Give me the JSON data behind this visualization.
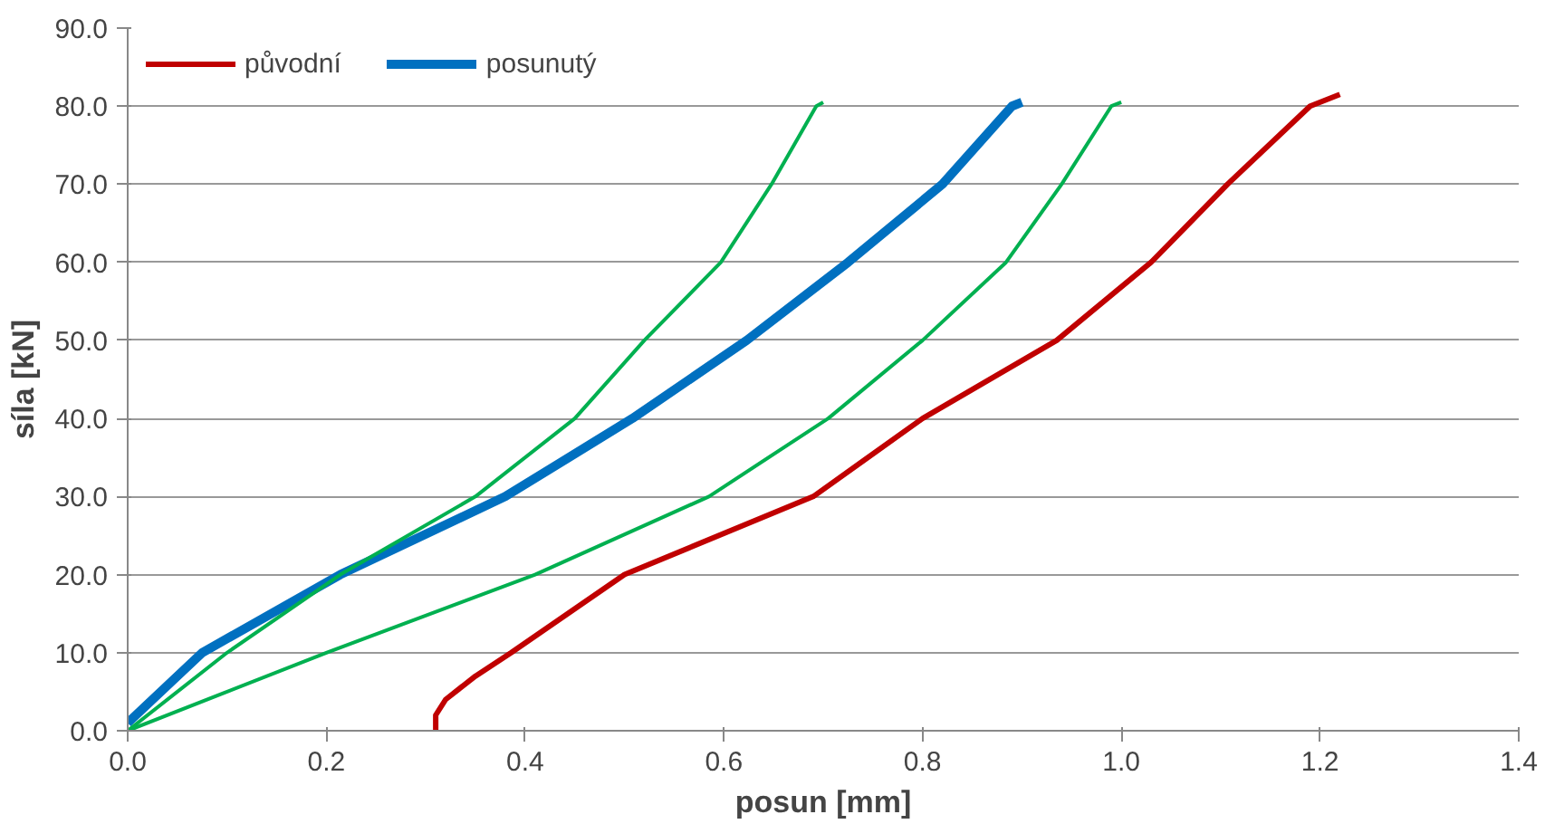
{
  "chart_data": {
    "type": "line",
    "xlabel": "posun [mm]",
    "ylabel": "síla [kN]",
    "xlim": [
      0,
      1.4
    ],
    "ylim": [
      0,
      90
    ],
    "xticks": [
      {
        "value": 0,
        "label": "0.0"
      },
      {
        "value": 0.2,
        "label": "0.2"
      },
      {
        "value": 0.4,
        "label": "0.4"
      },
      {
        "value": 0.6,
        "label": "0.6"
      },
      {
        "value": 0.8,
        "label": "0.8"
      },
      {
        "value": 1.0,
        "label": "1.0"
      },
      {
        "value": 1.2,
        "label": "1.2"
      },
      {
        "value": 1.4,
        "label": "1.4"
      }
    ],
    "yticks": [
      {
        "value": 0,
        "label": "0.0"
      },
      {
        "value": 10,
        "label": "10.0"
      },
      {
        "value": 20,
        "label": "20.0"
      },
      {
        "value": 30,
        "label": "30.0"
      },
      {
        "value": 40,
        "label": "40.0"
      },
      {
        "value": 50,
        "label": "50.0"
      },
      {
        "value": 60,
        "label": "60.0"
      },
      {
        "value": 70,
        "label": "70.0"
      },
      {
        "value": 80,
        "label": "80.0"
      },
      {
        "value": 90,
        "label": "90.0"
      }
    ],
    "grid": "y",
    "legend": "top left",
    "marker": "none",
    "line_style": "solid",
    "series": [
      {
        "name": "původní",
        "color": "#c00000",
        "x": [
          0.31,
          0.31,
          0.32,
          0.35,
          0.386,
          0.5,
          0.69,
          0.8,
          0.935,
          1.03,
          1.107,
          1.19,
          1.22
        ],
        "values": [
          0,
          2,
          4,
          7,
          10,
          20,
          30,
          40,
          50,
          60,
          70,
          80,
          81.5
        ]
      },
      {
        "name": "posunutý",
        "color": "#0070c0",
        "x": [
          0,
          0.075,
          0.214,
          0.38,
          0.508,
          0.623,
          0.725,
          0.82,
          0.89,
          0.9
        ],
        "values": [
          1,
          10,
          20,
          30,
          40,
          50,
          60,
          70,
          80,
          80.5
        ]
      },
      {
        "color": "#00b050",
        "x": [
          0,
          0.1,
          0.214,
          0.35,
          0.45,
          0.52,
          0.597,
          0.648,
          0.693,
          0.7
        ],
        "values": [
          0,
          10,
          20,
          30,
          40,
          50,
          60,
          70,
          80,
          80.5
        ]
      },
      {
        "color": "#00b050",
        "x": [
          0,
          0.2,
          0.41,
          0.585,
          0.705,
          0.8,
          0.884,
          0.94,
          0.99,
          1.0
        ],
        "values": [
          0,
          10,
          20,
          30,
          40,
          50,
          60,
          70,
          80,
          80.5
        ]
      }
    ]
  }
}
